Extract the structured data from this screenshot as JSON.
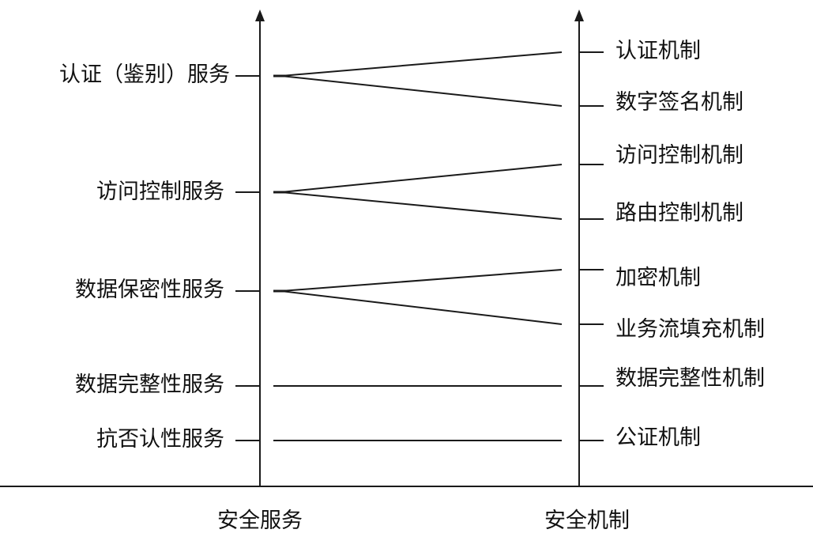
{
  "services": [
    {
      "label": "认证（鉴别）服务",
      "maps_to": [
        0,
        1
      ]
    },
    {
      "label": "访问控制服务",
      "maps_to": [
        2,
        3
      ]
    },
    {
      "label": "数据保密性服务",
      "maps_to": [
        4,
        5
      ]
    },
    {
      "label": "数据完整性服务",
      "maps_to": [
        6
      ]
    },
    {
      "label": "抗否认性服务",
      "maps_to": [
        7
      ]
    }
  ],
  "mechanisms": [
    {
      "label": "认证机制"
    },
    {
      "label": "数字签名机制"
    },
    {
      "label": "访问控制机制"
    },
    {
      "label": "路由控制机制"
    },
    {
      "label": "加密机制"
    },
    {
      "label": "业务流填充机制"
    },
    {
      "label": "数据完整性机制"
    },
    {
      "label": "公证机制"
    }
  ],
  "axes": {
    "left_title": "安全服务",
    "right_title": "安全机制"
  },
  "colors": {
    "line": "#1a1a1a",
    "text": "#111111",
    "background": "#ffffff"
  }
}
